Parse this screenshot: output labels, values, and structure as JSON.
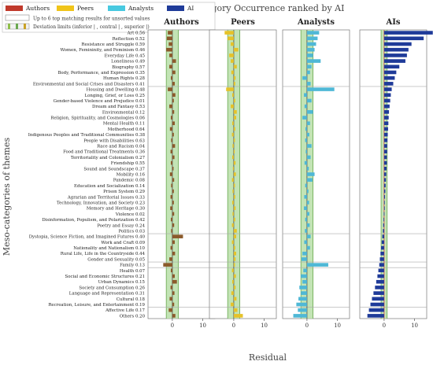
{
  "chart_data": {
    "type": "bar",
    "title": "Category Occurrence ranked by AI",
    "xlabel": "Residual",
    "ylabel": "Meso-categories of themes",
    "legend": {
      "placement": "top-left",
      "series_items": [
        {
          "name": "Authors",
          "color": "#c0392b"
        },
        {
          "name": "Peers",
          "color": "#f0c419"
        },
        {
          "name": "Analysts",
          "color": "#48c9e0"
        },
        {
          "name": "AI",
          "color": "#1f3b99"
        }
      ],
      "note": "Up to 6 top matching results for unsorted values",
      "deviation_label": "Deviation limits (inferior | , central | , superior |)"
    },
    "panels": [
      {
        "name": "Authors",
        "color": "#8b5a2b",
        "band": [
          -2,
          2
        ]
      },
      {
        "name": "Peers",
        "color": "#e6c229",
        "band": [
          -2,
          2
        ]
      },
      {
        "name": "Analysts",
        "color": "#4fb8d6",
        "band": [
          -2,
          2
        ]
      },
      {
        "name": "AIs",
        "color": "#1f3b99",
        "band": [
          -1,
          1
        ]
      }
    ],
    "xlim": [
      -8,
      14
    ],
    "xticks": [
      "0",
      "10"
    ],
    "xtick_values": [
      0,
      10
    ],
    "categories": [
      {
        "label": "Art",
        "value": "0.56",
        "v": [
          -1.5,
          -3.0,
          4.0,
          16.0
        ]
      },
      {
        "label": "Reflection",
        "value": "0.52",
        "v": [
          -1.8,
          -2.0,
          3.5,
          13.0
        ]
      },
      {
        "label": "Resistance and Struggle",
        "value": "0.59",
        "v": [
          -1.2,
          -1.0,
          3.0,
          9.0
        ]
      },
      {
        "label": "Women, Femininity, and Feminism",
        "value": "0.46",
        "v": [
          -2.0,
          1.5,
          2.5,
          8.0
        ]
      },
      {
        "label": "Everyday Life",
        "value": "0.45",
        "v": [
          -1.0,
          -1.5,
          2.0,
          7.5
        ]
      },
      {
        "label": "Loneliness",
        "value": "0.49",
        "v": [
          1.2,
          -1.0,
          4.5,
          7.0
        ]
      },
      {
        "label": "Biography",
        "value": "0.57",
        "v": [
          -1.0,
          1.0,
          1.5,
          5.0
        ]
      },
      {
        "label": "Body, Performance, and Expression",
        "value": "0.35",
        "v": [
          1.0,
          -0.8,
          1.0,
          4.0
        ]
      },
      {
        "label": "Human Rights",
        "value": "0.28",
        "v": [
          -0.5,
          0.6,
          -1.5,
          3.5
        ]
      },
      {
        "label": "Environmental and Social Crises and Disasters",
        "value": "0.41",
        "v": [
          0.8,
          0.5,
          1.2,
          3.0
        ]
      },
      {
        "label": "Housing and Dwelling",
        "value": "0.48",
        "v": [
          -1.5,
          -2.5,
          9.0,
          2.5
        ]
      },
      {
        "label": "Longing, Grief, or Loss",
        "value": "0.25",
        "v": [
          1.0,
          -0.5,
          -1.0,
          2.2
        ]
      },
      {
        "label": "Gender-based Violence and Prejudice",
        "value": "0.01",
        "v": [
          0.5,
          0.5,
          1.5,
          2.0
        ]
      },
      {
        "label": "Dream and Fantasy",
        "value": "0.53",
        "v": [
          -1.0,
          -1.0,
          -0.8,
          1.8
        ]
      },
      {
        "label": "Environmental",
        "value": "0.12",
        "v": [
          0.6,
          1.0,
          2.0,
          1.6
        ]
      },
      {
        "label": "Religion, Spirituality, and Cosmologies",
        "value": "0.06",
        "v": [
          -0.5,
          0.8,
          -1.5,
          1.5
        ]
      },
      {
        "label": "Mental Health",
        "value": "0.11",
        "v": [
          0.8,
          -0.5,
          1.0,
          1.4
        ]
      },
      {
        "label": "Motherhood",
        "value": "0.64",
        "v": [
          -0.8,
          0.5,
          -0.5,
          1.3
        ]
      },
      {
        "label": "Indigenous Peoples and Traditional Communities",
        "value": "0.38",
        "v": [
          0.5,
          -0.6,
          0.8,
          1.2
        ]
      },
      {
        "label": "People with Disabilities",
        "value": "0.63",
        "v": [
          -0.4,
          0.4,
          -0.6,
          1.1
        ]
      },
      {
        "label": "Race and Racism",
        "value": "0.04",
        "v": [
          0.9,
          -0.4,
          1.5,
          1.0
        ]
      },
      {
        "label": "Food and Traditional Treatments",
        "value": "0.36",
        "v": [
          -0.6,
          0.3,
          -0.4,
          1.0
        ]
      },
      {
        "label": "Territoriality and Colonialism",
        "value": "0.27",
        "v": [
          0.7,
          -0.5,
          1.2,
          0.9
        ]
      },
      {
        "label": "Friendship",
        "value": "0.55",
        "v": [
          -0.5,
          0.6,
          -0.8,
          0.9
        ]
      },
      {
        "label": "Sound and Soundscape",
        "value": "0.37",
        "v": [
          0.4,
          -0.3,
          0.6,
          0.8
        ]
      },
      {
        "label": "Mobility",
        "value": "0.16",
        "v": [
          -0.8,
          0.7,
          2.5,
          0.7
        ]
      },
      {
        "label": "Pandemic",
        "value": "0.08",
        "v": [
          0.6,
          -0.6,
          1.8,
          0.6
        ]
      },
      {
        "label": "Education and Socialization",
        "value": "0.14",
        "v": [
          -0.4,
          0.4,
          -0.6,
          0.5
        ]
      },
      {
        "label": "Prison System",
        "value": "0.29",
        "v": [
          0.5,
          -0.4,
          0.5,
          0.4
        ]
      },
      {
        "label": "Agrarian and Territorial Issues",
        "value": "0.33",
        "v": [
          -0.6,
          0.5,
          -0.9,
          0.3
        ]
      },
      {
        "label": "Technology, Innovation, and Society",
        "value": "0.23",
        "v": [
          0.5,
          -0.5,
          0.7,
          0.2
        ]
      },
      {
        "label": "Memory and Heritage",
        "value": "0.30",
        "v": [
          -0.7,
          0.6,
          -1.0,
          0.1
        ]
      },
      {
        "label": "Violence",
        "value": "0.02",
        "v": [
          0.6,
          -0.4,
          0.8,
          -0.1
        ]
      },
      {
        "label": "Disinformation, Populism, and Polarization",
        "value": "0.42",
        "v": [
          -0.5,
          0.5,
          -0.6,
          -0.2
        ]
      },
      {
        "label": "Poetry and Essay",
        "value": "0.24",
        "v": [
          0.6,
          -0.6,
          0.9,
          -0.3
        ]
      },
      {
        "label": "Politics",
        "value": "0.03",
        "v": [
          -0.4,
          1.0,
          -0.7,
          -0.4
        ]
      },
      {
        "label": "Dystopia, Science Fiction, and Imagined Futures",
        "value": "0.40",
        "v": [
          3.5,
          0.8,
          1.2,
          -0.6
        ]
      },
      {
        "label": "Work and Craft",
        "value": "0.09",
        "v": [
          0.8,
          -0.6,
          -0.9,
          -0.8
        ]
      },
      {
        "label": "Nationality and Nationalism",
        "value": "0.10",
        "v": [
          -0.6,
          0.5,
          1.0,
          -1.0
        ]
      },
      {
        "label": "Rural Life, Life in the Countryside",
        "value": "0.44",
        "v": [
          0.9,
          0.8,
          -1.5,
          -1.2
        ]
      },
      {
        "label": "Gender and Sexuality",
        "value": "0.05",
        "v": [
          -1.0,
          0.6,
          -1.8,
          -1.4
        ]
      },
      {
        "label": "Family",
        "value": "0.13",
        "v": [
          -3.0,
          0.4,
          7.0,
          -1.6
        ]
      },
      {
        "label": "Health",
        "value": "0.07",
        "v": [
          -0.5,
          -0.6,
          -1.2,
          -1.9
        ]
      },
      {
        "label": "Social and Economic Structures",
        "value": "0.21",
        "v": [
          0.8,
          0.7,
          -2.0,
          -2.2
        ]
      },
      {
        "label": "Urban Dynamics",
        "value": "0.15",
        "v": [
          1.5,
          -0.5,
          -1.5,
          -2.6
        ]
      },
      {
        "label": "Society and Consumption",
        "value": "0.26",
        "v": [
          -0.6,
          0.6,
          -2.5,
          -3.0
        ]
      },
      {
        "label": "Language and Representation",
        "value": "0.31",
        "v": [
          0.7,
          -0.8,
          -2.0,
          -3.5
        ]
      },
      {
        "label": "Cultural",
        "value": "0.18",
        "v": [
          -0.9,
          0.9,
          -2.8,
          -4.0
        ]
      },
      {
        "label": "Recreation, Leisure, and Entertainment",
        "value": "0.19",
        "v": [
          0.6,
          -1.0,
          -3.5,
          -4.5
        ]
      },
      {
        "label": "Affective Life",
        "value": "0.17",
        "v": [
          -1.2,
          1.2,
          -3.0,
          -5.0
        ]
      },
      {
        "label": "Others",
        "value": "0.20",
        "v": [
          1.0,
          3.0,
          -4.5,
          -5.5
        ]
      }
    ],
    "separators_after": [
      9,
      35,
      40,
      41,
      48
    ]
  }
}
